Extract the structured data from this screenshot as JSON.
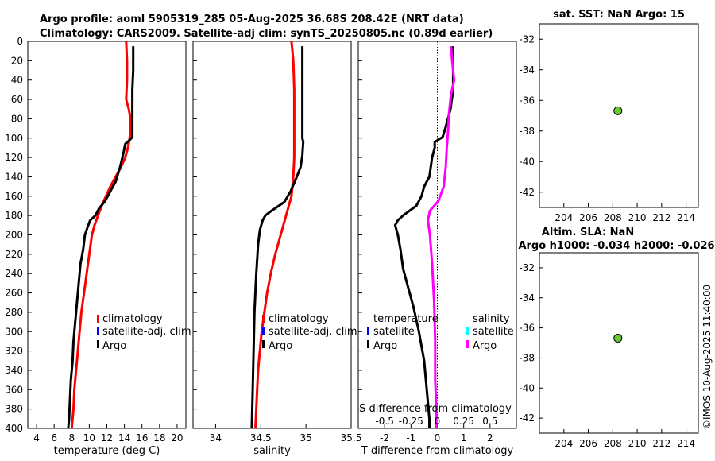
{
  "header": {
    "line1": "Argo profile: aoml 5905319_285 05-Aug-2025 36.68S 208.42E (NRT data)",
    "line2": "Climatology: CARS2009. Satellite-adj clim: synTS_20250805.nc (0.89d earlier)"
  },
  "timestamp": "©IMOS 10-Aug-2025 11:40:00",
  "colors": {
    "climatology": "#ff0000",
    "satellite": "#0000ff",
    "argo": "#000000",
    "salinity_sat": "#00ffff",
    "salinity_argo": "#ff00ff",
    "marker_fill": "#66cc33"
  },
  "chart_data": [
    {
      "id": "temperature",
      "type": "line",
      "xlabel": "temperature (deg C)",
      "ylabel": "",
      "xlim": [
        3,
        21
      ],
      "ylim": [
        400,
        0
      ],
      "xticks": [
        4,
        6,
        8,
        10,
        12,
        14,
        16,
        18,
        20
      ],
      "yticks": [
        0,
        20,
        40,
        60,
        80,
        100,
        120,
        140,
        160,
        180,
        200,
        220,
        240,
        260,
        280,
        300,
        320,
        340,
        360,
        380,
        400
      ],
      "series": [
        {
          "name": "climatology",
          "color": "#ff0000",
          "points": [
            [
              14.2,
              0
            ],
            [
              14.3,
              20
            ],
            [
              14.3,
              40
            ],
            [
              14.2,
              60
            ],
            [
              14.5,
              70
            ],
            [
              14.7,
              80
            ],
            [
              14.7,
              90
            ],
            [
              14.6,
              100
            ],
            [
              14.4,
              110
            ],
            [
              14.1,
              120
            ],
            [
              13.6,
              130
            ],
            [
              13.0,
              140
            ],
            [
              12.4,
              150
            ],
            [
              11.9,
              160
            ],
            [
              11.4,
              170
            ],
            [
              11.0,
              180
            ],
            [
              10.6,
              190
            ],
            [
              10.3,
              200
            ],
            [
              10.0,
              220
            ],
            [
              9.7,
              240
            ],
            [
              9.4,
              260
            ],
            [
              9.1,
              280
            ],
            [
              8.9,
              300
            ],
            [
              8.7,
              320
            ],
            [
              8.5,
              340
            ],
            [
              8.3,
              360
            ],
            [
              8.2,
              380
            ],
            [
              8.0,
              400
            ]
          ]
        },
        {
          "name": "Argo",
          "color": "#000000",
          "points": [
            [
              15.0,
              5
            ],
            [
              15.0,
              30
            ],
            [
              14.9,
              50
            ],
            [
              14.9,
              70
            ],
            [
              14.9,
              90
            ],
            [
              14.9,
              99
            ],
            [
              14.6,
              102
            ],
            [
              14.1,
              106
            ],
            [
              13.9,
              115
            ],
            [
              13.5,
              130
            ],
            [
              13.0,
              145
            ],
            [
              12.4,
              155
            ],
            [
              11.8,
              165
            ],
            [
              11.1,
              173
            ],
            [
              10.7,
              180
            ],
            [
              10.1,
              185
            ],
            [
              9.8,
              192
            ],
            [
              9.5,
              200
            ],
            [
              9.3,
              215
            ],
            [
              9.0,
              230
            ],
            [
              8.8,
              250
            ],
            [
              8.6,
              270
            ],
            [
              8.4,
              290
            ],
            [
              8.2,
              310
            ],
            [
              8.1,
              330
            ],
            [
              7.9,
              350
            ],
            [
              7.8,
              370
            ],
            [
              7.7,
              390
            ],
            [
              7.6,
              400
            ]
          ]
        }
      ]
    },
    {
      "id": "salinity",
      "type": "line",
      "xlabel": "salinity",
      "xlim": [
        33.75,
        35.5
      ],
      "ylim": [
        400,
        0
      ],
      "xticks": [
        34,
        34.5,
        35,
        35.5
      ],
      "xtick_labels": [
        "34",
        "34.5",
        "35",
        "35.5"
      ],
      "series": [
        {
          "name": "climatology",
          "color": "#ff0000",
          "points": [
            [
              34.84,
              0
            ],
            [
              34.86,
              20
            ],
            [
              34.87,
              50
            ],
            [
              34.87,
              80
            ],
            [
              34.87,
              100
            ],
            [
              34.87,
              120
            ],
            [
              34.86,
              140
            ],
            [
              34.84,
              160
            ],
            [
              34.78,
              180
            ],
            [
              34.72,
              200
            ],
            [
              34.66,
              220
            ],
            [
              34.61,
              240
            ],
            [
              34.57,
              260
            ],
            [
              34.54,
              280
            ],
            [
              34.51,
              300
            ],
            [
              34.49,
              320
            ],
            [
              34.47,
              340
            ],
            [
              34.46,
              360
            ],
            [
              34.45,
              380
            ],
            [
              34.44,
              400
            ]
          ]
        },
        {
          "name": "Argo",
          "color": "#000000",
          "points": [
            [
              34.96,
              5
            ],
            [
              34.96,
              40
            ],
            [
              34.96,
              80
            ],
            [
              34.96,
              100
            ],
            [
              34.97,
              104
            ],
            [
              34.96,
              118
            ],
            [
              34.94,
              130
            ],
            [
              34.89,
              142
            ],
            [
              34.83,
              155
            ],
            [
              34.76,
              166
            ],
            [
              34.62,
              175
            ],
            [
              34.55,
              180
            ],
            [
              34.52,
              185
            ],
            [
              34.49,
              195
            ],
            [
              34.47,
              210
            ],
            [
              34.45,
              240
            ],
            [
              34.43,
              280
            ],
            [
              34.42,
              320
            ],
            [
              34.41,
              360
            ],
            [
              34.4,
              400
            ]
          ]
        }
      ]
    },
    {
      "id": "difference",
      "type": "line",
      "xlabel": "T difference from climatology",
      "top_label": "S difference from climatology",
      "xlim": [
        -3,
        3
      ],
      "ylim": [
        400,
        0
      ],
      "xticks": [
        -2,
        -1,
        0,
        1,
        2
      ],
      "xtick_labels": [
        "-2",
        "-1",
        "0",
        "1",
        "2"
      ],
      "top_ticks": [
        -0.5,
        -0.25,
        0,
        0.25,
        0.5
      ],
      "top_tick_labels": [
        "-0.5",
        "-0.25",
        "0",
        "0.25",
        "0.5"
      ],
      "s_scale": 4,
      "series": [
        {
          "name": "temperature Argo",
          "color": "#000000",
          "points": [
            [
              0.6,
              5
            ],
            [
              0.6,
              30
            ],
            [
              0.6,
              50
            ],
            [
              0.5,
              70
            ],
            [
              0.3,
              90
            ],
            [
              0.2,
              99
            ],
            [
              -0.1,
              104
            ],
            [
              -0.1,
              110
            ],
            [
              -0.2,
              120
            ],
            [
              -0.3,
              140
            ],
            [
              -0.5,
              150
            ],
            [
              -0.6,
              160
            ],
            [
              -0.8,
              170
            ],
            [
              -1.3,
              180
            ],
            [
              -1.5,
              185
            ],
            [
              -1.6,
              190
            ],
            [
              -1.5,
              200
            ],
            [
              -1.4,
              215
            ],
            [
              -1.3,
              235
            ],
            [
              -1.1,
              255
            ],
            [
              -0.9,
              275
            ],
            [
              -0.7,
              300
            ],
            [
              -0.5,
              330
            ],
            [
              -0.4,
              360
            ],
            [
              -0.3,
              390
            ],
            [
              -0.3,
              400
            ]
          ]
        },
        {
          "name": "salinity Argo",
          "color": "#ff00ff",
          "points_s": [
            [
              0.13,
              5
            ],
            [
              0.14,
              20
            ],
            [
              0.16,
              40
            ],
            [
              0.13,
              55
            ],
            [
              0.11,
              75
            ],
            [
              0.1,
              95
            ],
            [
              0.09,
              110
            ],
            [
              0.08,
              130
            ],
            [
              0.06,
              150
            ],
            [
              0.01,
              165
            ],
            [
              -0.07,
              175
            ],
            [
              -0.09,
              185
            ],
            [
              -0.07,
              200
            ],
            [
              -0.05,
              230
            ],
            [
              -0.03,
              270
            ],
            [
              -0.02,
              310
            ],
            [
              -0.02,
              350
            ],
            [
              -0.01,
              380
            ],
            [
              -0.01,
              400
            ]
          ]
        }
      ]
    },
    {
      "id": "sst_map",
      "type": "scatter",
      "title": "sat. SST: NaN Argo: 15",
      "xlim": [
        202,
        215
      ],
      "ylim": [
        -43,
        -31
      ],
      "xticks": [
        204,
        206,
        208,
        210,
        212,
        214
      ],
      "yticks": [
        -32,
        -34,
        -36,
        -38,
        -40,
        -42
      ],
      "points": [
        [
          208.42,
          -36.68
        ]
      ]
    },
    {
      "id": "sla_map",
      "type": "scatter",
      "title": "Altim. SLA: NaN",
      "subtitle": "Argo h1000: -0.034 h2000: -0.026",
      "xlim": [
        202,
        215
      ],
      "ylim": [
        -43,
        -31
      ],
      "xticks": [
        204,
        206,
        208,
        210,
        212,
        214
      ],
      "yticks": [
        -32,
        -34,
        -36,
        -38,
        -40,
        -42
      ],
      "points": [
        [
          208.42,
          -36.68
        ]
      ]
    }
  ],
  "legend_left": [
    "climatology",
    "satellite-adj. clim",
    "Argo"
  ],
  "legend_diff": {
    "temp_title": "temperature",
    "temp_items": [
      "satellite",
      "Argo"
    ],
    "sal_title": "salinity",
    "sal_items": [
      "satellite",
      "Argo"
    ]
  }
}
